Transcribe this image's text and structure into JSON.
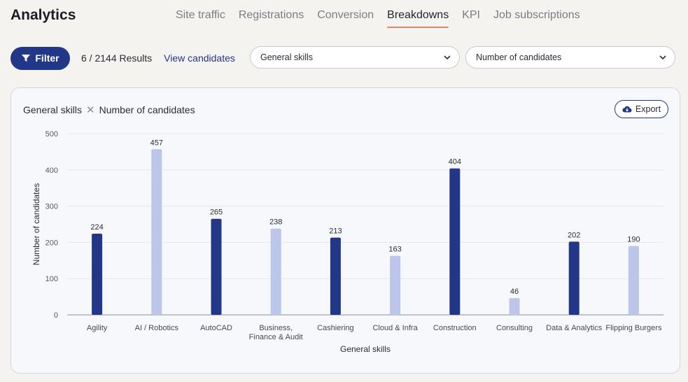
{
  "app": {
    "title": "Analytics"
  },
  "tabs": [
    {
      "label": "Site traffic",
      "active": false
    },
    {
      "label": "Registrations",
      "active": false
    },
    {
      "label": "Conversion",
      "active": false
    },
    {
      "label": "Breakdowns",
      "active": true
    },
    {
      "label": "KPI",
      "active": false
    },
    {
      "label": "Job subscriptions",
      "active": false
    }
  ],
  "toolbar": {
    "filter_label": "Filter",
    "results_text": "6 / 2144 Results",
    "view_link": "View candidates",
    "dimension_select": "General skills",
    "metric_select": "Number of candidates"
  },
  "card": {
    "title_dimension": "General skills",
    "title_separator": "✕",
    "title_metric": "Number of candidates",
    "export_label": "Export"
  },
  "colors": {
    "accent": "#233788",
    "bar_dark": "#233788",
    "bar_light": "#bbc6ea",
    "tab_underline": "#e4845f"
  },
  "chart_data": {
    "type": "bar",
    "categories": [
      "Agility",
      "AI / Robotics",
      "AutoCAD",
      "Business,\nFinance & Audit",
      "Cashiering",
      "Cloud & Infra",
      "Construction",
      "Consulting",
      "Data & Analytics",
      "Flipping Burgers"
    ],
    "values": [
      224,
      457,
      265,
      238,
      213,
      163,
      404,
      46,
      202,
      190
    ],
    "bar_colors": [
      "#233788",
      "#bbc6ea",
      "#233788",
      "#bbc6ea",
      "#233788",
      "#bbc6ea",
      "#233788",
      "#bbc6ea",
      "#233788",
      "#bbc6ea"
    ],
    "xlabel": "General skills",
    "ylabel": "Number of candidates",
    "ylim": [
      0,
      500
    ],
    "yticks": [
      0,
      100,
      200,
      300,
      400,
      500
    ],
    "grid": true,
    "data_labels": true
  }
}
